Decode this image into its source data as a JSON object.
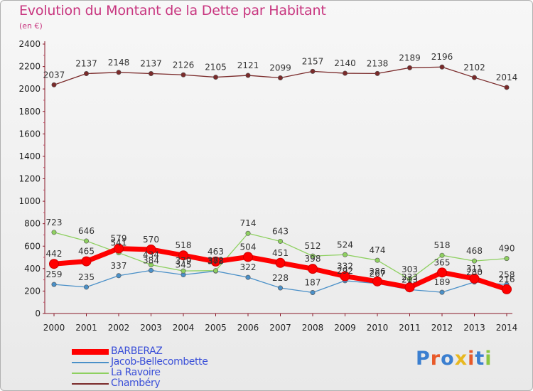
{
  "header": {
    "title": "Evolution du Montant de la Dette par Habitant",
    "subtitle": "(en €)"
  },
  "logo": {
    "text": "Proxiti",
    "colors": [
      "#3b7fd0",
      "#e85a2a",
      "#3b7fd0",
      "#e8b820",
      "#e85a2a",
      "#3b7fd0",
      "#8cc63f"
    ]
  },
  "chart_data": {
    "type": "line",
    "title": "Evolution du Montant de la Dette par Habitant",
    "subtitle": "(en €)",
    "xlabel": "",
    "ylabel": "",
    "ylim": [
      0,
      2400
    ],
    "yticks": [
      "0",
      "200",
      "400",
      "600",
      "800",
      "1000",
      "1200",
      "1400",
      "1600",
      "1800",
      "2000",
      "2200",
      "2400"
    ],
    "x": [
      "2000",
      "2001",
      "2002",
      "2003",
      "2004",
      "2005",
      "2006",
      "2007",
      "2008",
      "2009",
      "2010",
      "2011",
      "2012",
      "2013",
      "2014"
    ],
    "grid": false,
    "legend_position": "bottom-left",
    "series": [
      {
        "name": "BARBERAZ",
        "color": "#ff0000",
        "values": [
          442,
          465,
          579,
          570,
          518,
          463,
          504,
          451,
          398,
          332,
          286,
          233,
          365,
          311,
          216
        ],
        "labels": [
          "442",
          "465",
          "579",
          "570",
          "518",
          "463",
          "504",
          "451",
          "398",
          "332",
          "286",
          "233",
          "365",
          "311",
          "216"
        ]
      },
      {
        "name": "Jacob-Bellecombette",
        "color": "#4a90c8",
        "values": [
          259,
          235,
          337,
          384,
          345,
          378,
          322,
          228,
          187,
          292,
          267,
          213,
          189,
          280,
          258
        ],
        "labels": [
          "259",
          "235",
          "337",
          "384",
          "345",
          "378",
          "322",
          "228",
          "187",
          "292",
          "267",
          "213",
          "189",
          "280",
          "258"
        ]
      },
      {
        "name": "La Ravoire",
        "color": "#8ed060",
        "values": [
          723,
          646,
          541,
          434,
          379,
          382,
          714,
          643,
          512,
          524,
          474,
          303,
          518,
          468,
          490
        ],
        "labels": [
          "723",
          "646",
          "541",
          "434",
          "379",
          "382",
          "714",
          "643",
          "512",
          "524",
          "474",
          "303",
          "518",
          "468",
          "490"
        ]
      },
      {
        "name": "Chambéry",
        "color": "#7a2a2a",
        "values": [
          2037,
          2137,
          2148,
          2137,
          2126,
          2105,
          2121,
          2099,
          2157,
          2140,
          2138,
          2189,
          2196,
          2102,
          2014
        ],
        "labels": [
          "2037",
          "2137",
          "2148",
          "2137",
          "2126",
          "2105",
          "2121",
          "2099",
          "2157",
          "2140",
          "2138",
          "2189",
          "2196",
          "2102",
          "2014"
        ]
      }
    ]
  }
}
